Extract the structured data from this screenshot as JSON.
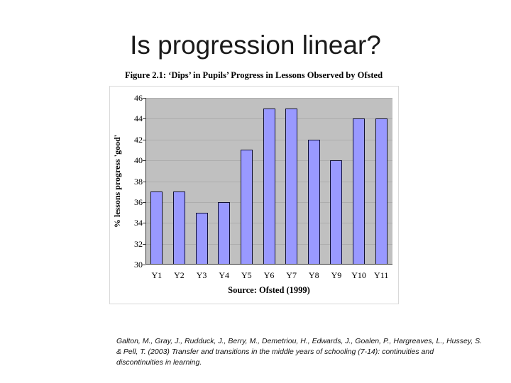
{
  "slide": {
    "title": "Is progression linear?",
    "citation_lines": [
      "Galton, M., Gray, J., Rudduck, J., Berry, M., Demetriou, H., Edwards, J., Goalen, P., Hargreaves, L., Hussey, S.",
      "& Pell, T. (2003) Transfer and transitions in the middle years of schooling (7-14): continuities and",
      "discontinuities in learning."
    ]
  },
  "chart_data": {
    "type": "bar",
    "title": "Figure 2.1: ‘Dips’ in Pupils’ Progress in Lessons Observed by Ofsted",
    "categories": [
      "Y1",
      "Y2",
      "Y3",
      "Y4",
      "Y5",
      "Y6",
      "Y7",
      "Y8",
      "Y9",
      "Y10",
      "Y11"
    ],
    "values": [
      37,
      37,
      35,
      36,
      41,
      45,
      45,
      42,
      40,
      44,
      44
    ],
    "xlabel": "",
    "ylabel": "% lessons progress 'good'",
    "ylim": [
      30,
      46
    ],
    "yticks": [
      30,
      32,
      34,
      36,
      38,
      40,
      42,
      44,
      46
    ],
    "grid": true,
    "legend": "none",
    "source": "Source: Ofsted (1999)",
    "colors": {
      "bar_fill": "#9999FF",
      "bar_border": "#101035",
      "plot_bg": "#C0C0C0",
      "gridline": "#ADADAD",
      "axis": "#333333"
    }
  }
}
